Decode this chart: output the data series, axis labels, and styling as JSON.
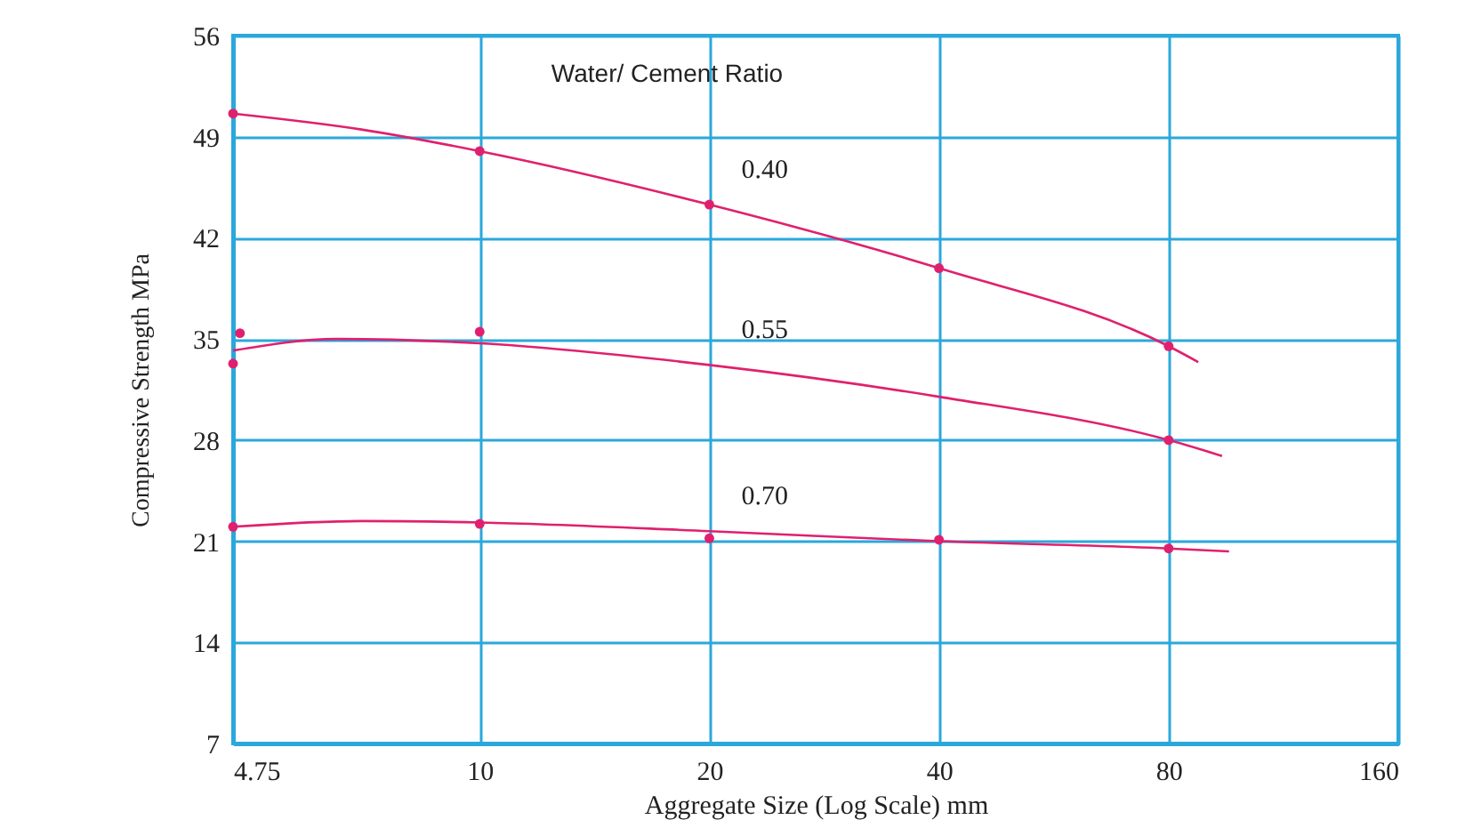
{
  "chart_data": {
    "type": "line",
    "xlabel": "Aggregate Size (Log Scale) mm",
    "ylabel": "Compressive Strength MPa",
    "annotations": [
      "Water/ Cement Ratio"
    ],
    "log": "x",
    "xlim": [
      4.75,
      160
    ],
    "xticks": [
      4.75,
      10,
      20,
      40,
      80,
      160
    ],
    "ylim": [
      7,
      56
    ],
    "yticks": [
      7,
      14,
      21,
      28,
      35,
      42,
      49,
      56
    ],
    "grid": true,
    "series": [
      {
        "name": "0.40",
        "color": "#e0206e",
        "marker": "none",
        "x": [
          4.75,
          7,
          10,
          20,
          40,
          80,
          87.5
        ],
        "values": [
          50.6,
          49.5,
          48.0,
          44.3,
          39.9,
          34.5,
          33.4
        ]
      },
      {
        "name": "0.55",
        "color": "#e0206e",
        "marker": "none",
        "x": [
          4.75,
          6.5,
          10,
          20,
          40,
          80,
          94
        ],
        "values": [
          34.2,
          35.0,
          34.7,
          33.2,
          31.0,
          28.0,
          26.9
        ]
      },
      {
        "name": "0.70",
        "color": "#e0206e",
        "marker": "none",
        "x": [
          4.75,
          7,
          10,
          20,
          40,
          80,
          96
        ],
        "values": [
          22.0,
          22.4,
          22.3,
          21.7,
          21.0,
          20.5,
          20.3
        ]
      },
      {
        "type": "scatter",
        "color": "#e0206e",
        "marker": "circle",
        "x": [
          4.75,
          10,
          20,
          40,
          80
        ],
        "values": [
          50.6,
          48.0,
          44.3,
          39.9,
          34.5
        ]
      },
      {
        "type": "scatter",
        "color": "#e0206e",
        "marker": "circle",
        "x": [
          4.85,
          4.75,
          10,
          80
        ],
        "values": [
          35.4,
          33.3,
          35.5,
          28.0
        ]
      },
      {
        "type": "scatter",
        "color": "#e0206e",
        "marker": "circle",
        "x": [
          4.75,
          10,
          20,
          40,
          80
        ],
        "values": [
          22.0,
          22.2,
          21.2,
          21.1,
          20.5
        ]
      }
    ]
  }
}
